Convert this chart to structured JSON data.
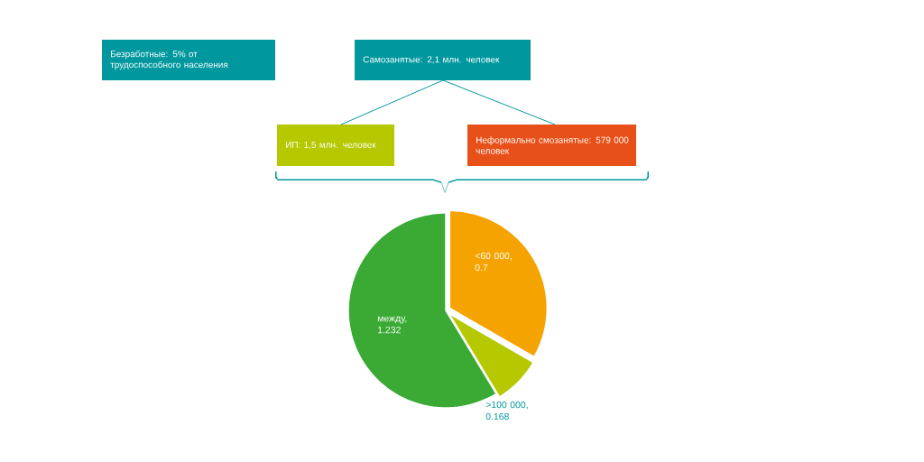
{
  "chart_data": {
    "type": "pie",
    "categories": [
      null,
      null,
      null
    ],
    "values": [
      0.7,
      0.168,
      1.232
    ],
    "colors": [
      "#f5a300",
      "#b5c800",
      "#3aaa35"
    ],
    "value_labels": [
      "<60 000, 0.7",
      ">100 000, 0.168",
      "между, 1.232"
    ],
    "annotations": [
      "Безработные: 5% от трудоспособного населения",
      "Самозанятые: 2,1 млн. человек",
      "ИП: 1,5 млн. человек",
      "Неформально смозанятые: 579 000 человек"
    ]
  }
}
